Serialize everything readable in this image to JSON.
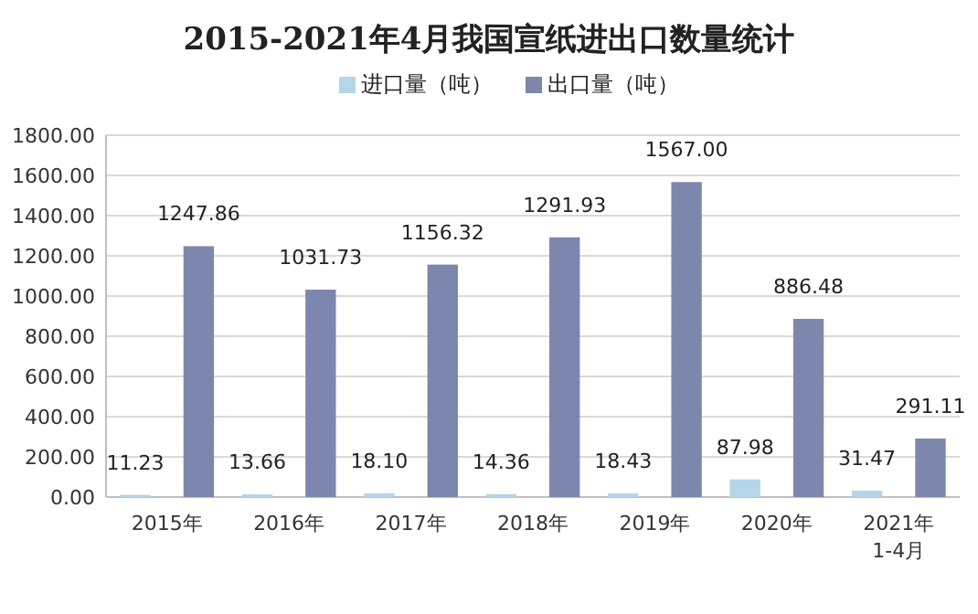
{
  "chart_data": {
    "type": "bar",
    "title": "2015-2021年4月我国宣纸进出口数量统计",
    "categories": [
      "2015年",
      "2016年",
      "2017年",
      "2018年",
      "2019年",
      "2020年",
      "2021年\n1-4月"
    ],
    "series": [
      {
        "name": "进口量（吨）",
        "color": "#b4d5ea",
        "values": [
          11.23,
          13.66,
          18.1,
          14.36,
          18.43,
          87.98,
          31.47
        ],
        "value_labels": [
          "11.23",
          "13.66",
          "18.10",
          "14.36",
          "18.43",
          "87.98",
          "31.47"
        ]
      },
      {
        "name": "出口量（吨）",
        "color": "#7d87ad",
        "values": [
          1247.86,
          1031.73,
          1156.32,
          1291.93,
          1567.0,
          886.48,
          291.11
        ],
        "value_labels": [
          "1247.86",
          "1031.73",
          "1156.32",
          "1291.93",
          "1567.00",
          "886.48",
          "291.11"
        ]
      }
    ],
    "ylim": [
      0,
      1800
    ],
    "yticks": [
      {
        "value": 0,
        "label": "0.00"
      },
      {
        "value": 200,
        "label": "200.00"
      },
      {
        "value": 400,
        "label": "400.00"
      },
      {
        "value": 600,
        "label": "600.00"
      },
      {
        "value": 800,
        "label": "800.00"
      },
      {
        "value": 1000,
        "label": "1000.00"
      },
      {
        "value": 1200,
        "label": "1200.00"
      },
      {
        "value": 1400,
        "label": "1400.00"
      },
      {
        "value": 1600,
        "label": "1600.00"
      },
      {
        "value": 1800,
        "label": "1800.00"
      }
    ],
    "grid": "y",
    "legend": "top"
  }
}
